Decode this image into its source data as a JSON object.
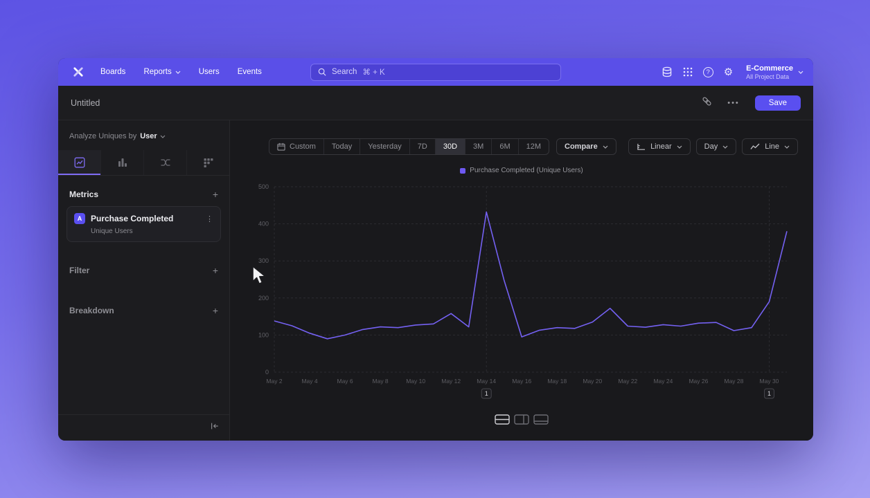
{
  "accent": "#5a4ff0",
  "nav": {
    "items": [
      {
        "label": "Boards",
        "chevron": false
      },
      {
        "label": "Reports",
        "chevron": true
      },
      {
        "label": "Users",
        "chevron": false
      },
      {
        "label": "Events",
        "chevron": false
      }
    ],
    "search": {
      "label": "Search",
      "shortcut": "⌘ + K"
    },
    "project": {
      "name": "E-Commerce",
      "scope": "All Project Data"
    }
  },
  "header": {
    "title": "Untitled",
    "more_label": "•••",
    "save_label": "Save"
  },
  "sidebar": {
    "analyze_prefix": "Analyze Uniques by",
    "analyze_value": "User",
    "metrics": {
      "heading": "Metrics",
      "add_label": "+",
      "items": [
        {
          "badge": "A",
          "name": "Purchase Completed",
          "subtitle": "Unique Users"
        }
      ]
    },
    "sections": [
      {
        "label": "Filter",
        "add_label": "+"
      },
      {
        "label": "Breakdown",
        "add_label": "+"
      }
    ]
  },
  "toolbar": {
    "ranges": [
      "Custom",
      "Today",
      "Yesterday",
      "7D",
      "30D",
      "3M",
      "6M",
      "12M"
    ],
    "active_range": "30D",
    "compare_label": "Compare",
    "scale_label": "Linear",
    "interval_label": "Day",
    "chart_type_label": "Line"
  },
  "chart_data": {
    "type": "line",
    "title": "Purchase Completed (Unique Users)",
    "legend": "Purchase Completed (Unique Users)",
    "legend_position": "top",
    "line_color": "#7461f2",
    "grid": true,
    "ylim": [
      0,
      500
    ],
    "y_ticks": [
      0,
      100,
      200,
      300,
      400,
      500
    ],
    "x": [
      "May 2",
      "May 3",
      "May 4",
      "May 5",
      "May 6",
      "May 7",
      "May 8",
      "May 9",
      "May 10",
      "May 11",
      "May 12",
      "May 13",
      "May 14",
      "May 15",
      "May 16",
      "May 17",
      "May 18",
      "May 19",
      "May 20",
      "May 21",
      "May 22",
      "May 23",
      "May 24",
      "May 25",
      "May 26",
      "May 27",
      "May 28",
      "May 29",
      "May 30",
      "May 31"
    ],
    "values": [
      138,
      125,
      105,
      90,
      100,
      115,
      122,
      120,
      127,
      130,
      158,
      122,
      432,
      248,
      95,
      113,
      120,
      118,
      135,
      172,
      124,
      121,
      128,
      124,
      132,
      134,
      112,
      120,
      190,
      380
    ],
    "x_tick_labels": [
      "May 2",
      "May 4",
      "May 6",
      "May 8",
      "May 10",
      "May 12",
      "May 14",
      "May 16",
      "May 18",
      "May 20",
      "May 22",
      "May 24",
      "May 26",
      "May 28",
      "May 30"
    ],
    "annotations": [
      {
        "label": "1",
        "x": "May 14"
      },
      {
        "label": "1",
        "x": "May 30"
      }
    ]
  }
}
